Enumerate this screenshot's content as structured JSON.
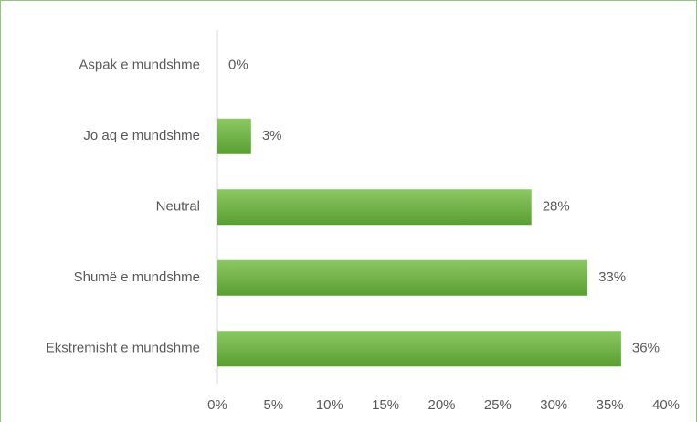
{
  "chart_data": {
    "type": "bar",
    "orientation": "horizontal",
    "categories": [
      "Aspak e mundshme",
      "Jo aq e mundshme",
      "Neutral",
      "Shumë e mundshme",
      "Ekstremisht e mundshme"
    ],
    "values": [
      0,
      3,
      28,
      33,
      36
    ],
    "data_labels": [
      "0%",
      "3%",
      "28%",
      "33%",
      "36%"
    ],
    "x_ticks": [
      "0%",
      "5%",
      "10%",
      "15%",
      "20%",
      "25%",
      "30%",
      "35%",
      "40%"
    ],
    "xlim": [
      0,
      40
    ],
    "grid": false,
    "legend": "none",
    "colors": {
      "bar_light": "#8cc863",
      "bar_dark": "#5a9e32",
      "text": "#595959",
      "axis": "#d9d9d9",
      "frame": "#93c47d"
    }
  }
}
